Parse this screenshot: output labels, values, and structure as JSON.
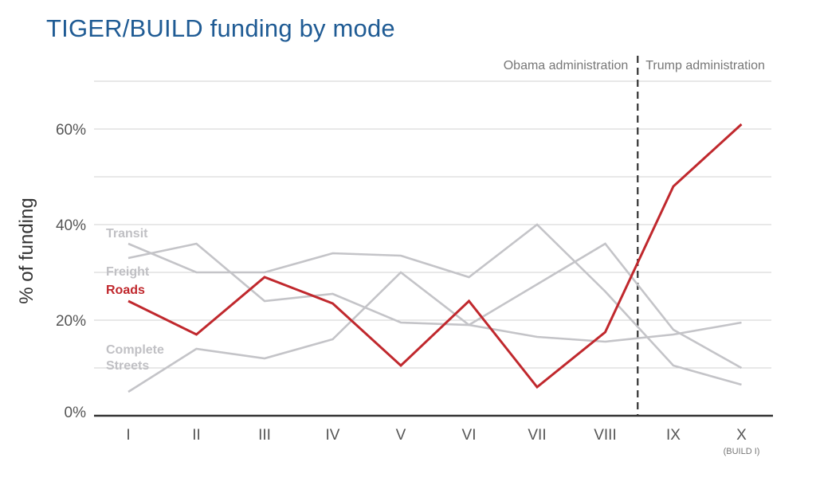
{
  "chart_data": {
    "type": "line",
    "title": "TIGER/BUILD funding by mode",
    "ylabel": "% of funding",
    "xlabel": "",
    "categories": [
      "I",
      "II",
      "III",
      "IV",
      "V",
      "VI",
      "VII",
      "VIII",
      "IX",
      "X"
    ],
    "category_sublabel": {
      "index": 9,
      "text": "(BUILD I)"
    },
    "y_ticks": [
      {
        "value": 0,
        "label": "0%"
      },
      {
        "value": 20,
        "label": "20%"
      },
      {
        "value": 40,
        "label": "40%"
      },
      {
        "value": 60,
        "label": "60%"
      }
    ],
    "ylim": [
      0,
      70
    ],
    "grid": true,
    "series": [
      {
        "name": "Transit",
        "color": "#c4c4c8",
        "values": [
          33,
          36,
          24,
          25.5,
          19.5,
          19,
          27.5,
          36,
          18,
          10
        ]
      },
      {
        "name": "Freight",
        "color": "#c4c4c8",
        "values": [
          36,
          30,
          30,
          34,
          33.5,
          29,
          40,
          26,
          10.5,
          6.5
        ]
      },
      {
        "name": "Roads",
        "color": "#c0282d",
        "values": [
          24,
          17,
          29,
          23.5,
          10.5,
          24,
          6,
          17.5,
          48,
          61
        ]
      },
      {
        "name": "Complete Streets",
        "color": "#c4c4c8",
        "values": [
          5,
          14,
          12,
          16,
          30,
          19,
          16.5,
          15.5,
          17,
          19.5
        ]
      }
    ],
    "legend_labels": [
      {
        "series": 0,
        "lines": [
          "Transit"
        ]
      },
      {
        "series": 1,
        "lines": [
          "Freight"
        ]
      },
      {
        "series": 2,
        "lines": [
          "Roads"
        ]
      },
      {
        "series": 3,
        "lines": [
          "Complete",
          "Streets"
        ]
      }
    ],
    "divider_after_index": 7,
    "period_labels": {
      "left": "Obama administration",
      "right": "Trump administration"
    }
  }
}
